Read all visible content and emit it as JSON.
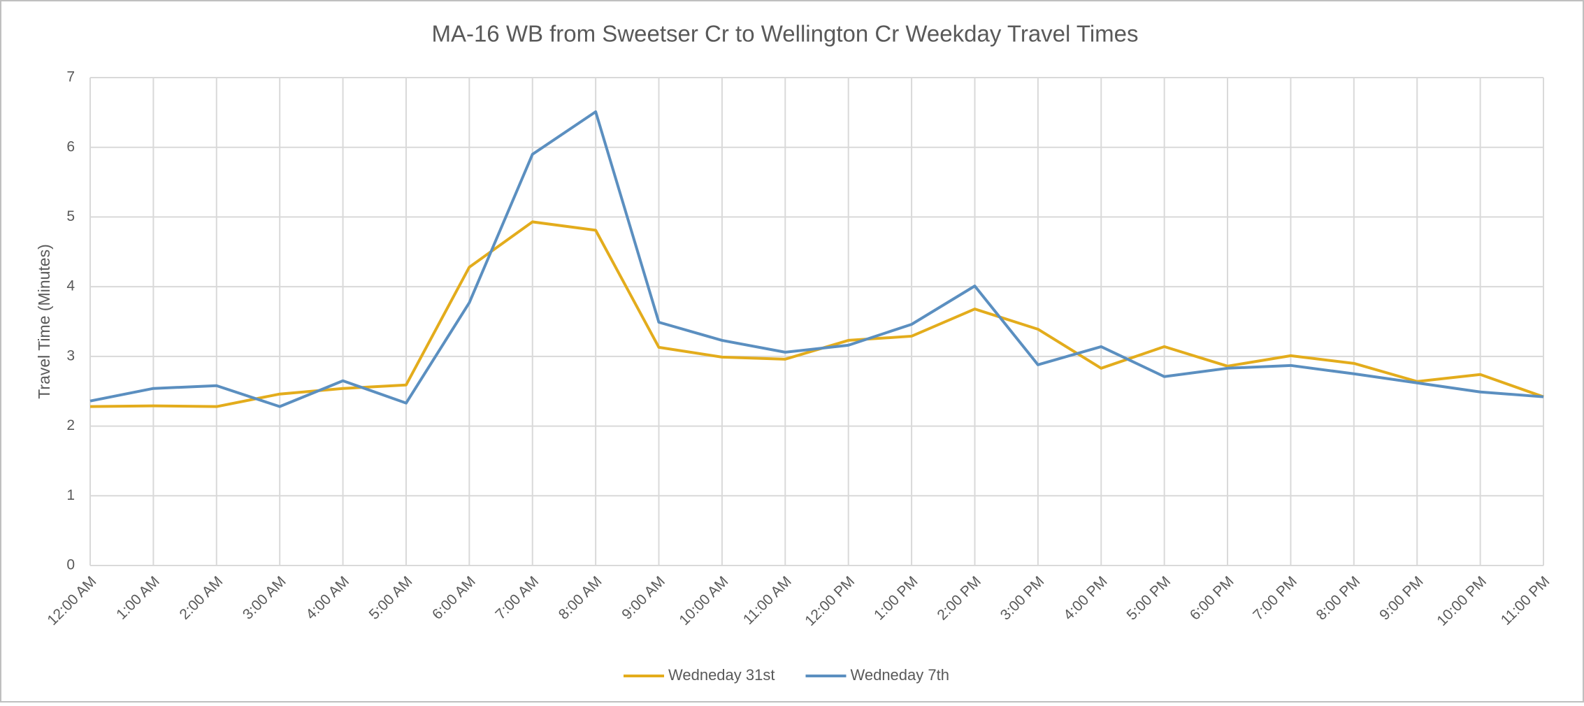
{
  "chart_data": {
    "type": "line",
    "title": "MA-16 WB from Sweetser Cr to Wellington Cr Weekday Travel Times",
    "y_label": "Travel Time (Minutes)",
    "categories": [
      "12:00 AM",
      "1:00 AM",
      "2:00 AM",
      "3:00 AM",
      "4:00 AM",
      "5:00 AM",
      "6:00 AM",
      "7:00 AM",
      "8:00 AM",
      "9:00 AM",
      "10:00 AM",
      "11:00 AM",
      "12:00 PM",
      "1:00 PM",
      "2:00 PM",
      "3:00 PM",
      "4:00 PM",
      "5:00 PM",
      "6:00 PM",
      "7:00 PM",
      "8:00 PM",
      "9:00 PM",
      "10:00 PM",
      "11:00 PM"
    ],
    "series": [
      {
        "name": "Wedneday 31st",
        "color": "#e3ac1c",
        "values": [
          2.28,
          2.29,
          2.28,
          2.46,
          2.54,
          2.59,
          4.28,
          4.93,
          4.81,
          3.13,
          2.99,
          2.96,
          3.23,
          3.29,
          3.68,
          3.39,
          2.83,
          3.14,
          2.86,
          3.01,
          2.9,
          2.64,
          2.74,
          2.42
        ]
      },
      {
        "name": "Wedneday 7th",
        "color": "#5b8fc0",
        "values": [
          2.36,
          2.54,
          2.58,
          2.28,
          2.65,
          2.33,
          3.77,
          5.9,
          6.51,
          3.49,
          3.23,
          3.06,
          3.16,
          3.46,
          4.01,
          2.88,
          3.14,
          2.71,
          2.83,
          2.87,
          2.75,
          2.62,
          2.49,
          2.42
        ]
      }
    ],
    "ylim": [
      0,
      7
    ],
    "yticks": [
      0,
      1,
      2,
      3,
      4,
      5,
      6,
      7
    ],
    "grid": true,
    "legend": "bottom"
  }
}
